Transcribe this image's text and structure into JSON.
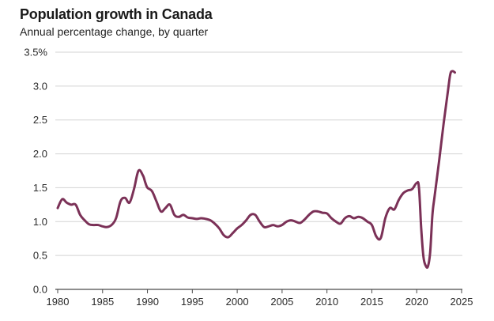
{
  "chart_data": {
    "type": "line",
    "title": "Population growth in Canada",
    "subtitle": "Annual percentage change, by quarter",
    "xlabel": "",
    "ylabel": "",
    "xlim": [
      1979.8,
      2025.3
    ],
    "ylim": [
      0.0,
      3.5
    ],
    "grid": true,
    "y_ticks": [
      {
        "value": 0.0,
        "label": "0.0"
      },
      {
        "value": 0.5,
        "label": "0.5"
      },
      {
        "value": 1.0,
        "label": "1.0"
      },
      {
        "value": 1.5,
        "label": "1.5"
      },
      {
        "value": 2.0,
        "label": "2.0"
      },
      {
        "value": 2.5,
        "label": "2.5"
      },
      {
        "value": 3.0,
        "label": "3.0"
      },
      {
        "value": 3.5,
        "label": "3.5%"
      }
    ],
    "x_ticks": [
      {
        "value": 1980,
        "label": "1980"
      },
      {
        "value": 1985,
        "label": "1985"
      },
      {
        "value": 1990,
        "label": "1990"
      },
      {
        "value": 1995,
        "label": "1995"
      },
      {
        "value": 2000,
        "label": "2000"
      },
      {
        "value": 2005,
        "label": "2005"
      },
      {
        "value": 2010,
        "label": "2010"
      },
      {
        "value": 2015,
        "label": "2015"
      },
      {
        "value": 2020,
        "label": "2020"
      },
      {
        "value": 2025,
        "label": "2025"
      }
    ],
    "series": [
      {
        "color": "#7b3157",
        "x": [
          1980.0,
          1980.5,
          1981.0,
          1981.5,
          1982.0,
          1982.5,
          1983.0,
          1983.5,
          1984.0,
          1984.5,
          1985.0,
          1985.5,
          1986.0,
          1986.5,
          1987.0,
          1987.5,
          1988.0,
          1988.5,
          1989.0,
          1989.5,
          1989.75,
          1990.0,
          1990.5,
          1991.0,
          1991.5,
          1992.0,
          1992.5,
          1993.0,
          1993.5,
          1994.0,
          1994.5,
          1995.0,
          1995.5,
          1996.0,
          1996.5,
          1997.0,
          1997.5,
          1998.0,
          1998.5,
          1999.0,
          1999.5,
          2000.0,
          2000.5,
          2001.0,
          2001.5,
          2002.0,
          2002.5,
          2003.0,
          2003.5,
          2004.0,
          2004.5,
          2005.0,
          2005.5,
          2006.0,
          2006.5,
          2007.0,
          2007.5,
          2008.0,
          2008.5,
          2009.0,
          2009.5,
          2010.0,
          2010.5,
          2011.0,
          2011.5,
          2012.0,
          2012.5,
          2013.0,
          2013.5,
          2014.0,
          2014.5,
          2015.0,
          2015.5,
          2016.0,
          2016.5,
          2017.0,
          2017.5,
          2018.0,
          2018.5,
          2019.0,
          2019.5,
          2020.0,
          2020.25,
          2020.5,
          2020.75,
          2021.0,
          2021.25,
          2021.5,
          2021.75,
          2022.0,
          2022.5,
          2023.0,
          2023.5,
          2023.75,
          2024.0,
          2024.25
        ],
        "values": [
          1.2,
          1.33,
          1.28,
          1.25,
          1.25,
          1.1,
          1.02,
          0.96,
          0.95,
          0.95,
          0.93,
          0.92,
          0.95,
          1.05,
          1.3,
          1.35,
          1.28,
          1.48,
          1.75,
          1.68,
          1.58,
          1.5,
          1.45,
          1.3,
          1.15,
          1.2,
          1.25,
          1.1,
          1.07,
          1.1,
          1.06,
          1.05,
          1.04,
          1.05,
          1.04,
          1.02,
          0.97,
          0.9,
          0.8,
          0.77,
          0.83,
          0.9,
          0.95,
          1.02,
          1.1,
          1.1,
          1.0,
          0.92,
          0.93,
          0.95,
          0.93,
          0.95,
          1.0,
          1.02,
          1.0,
          0.98,
          1.03,
          1.1,
          1.15,
          1.15,
          1.13,
          1.12,
          1.05,
          1.0,
          0.97,
          1.05,
          1.08,
          1.05,
          1.07,
          1.05,
          1.0,
          0.95,
          0.78,
          0.76,
          1.05,
          1.2,
          1.18,
          1.32,
          1.42,
          1.46,
          1.48,
          1.57,
          1.5,
          0.9,
          0.48,
          0.35,
          0.34,
          0.55,
          1.1,
          1.38,
          1.9,
          2.45,
          2.95,
          3.18,
          3.22,
          3.2
        ]
      }
    ]
  }
}
